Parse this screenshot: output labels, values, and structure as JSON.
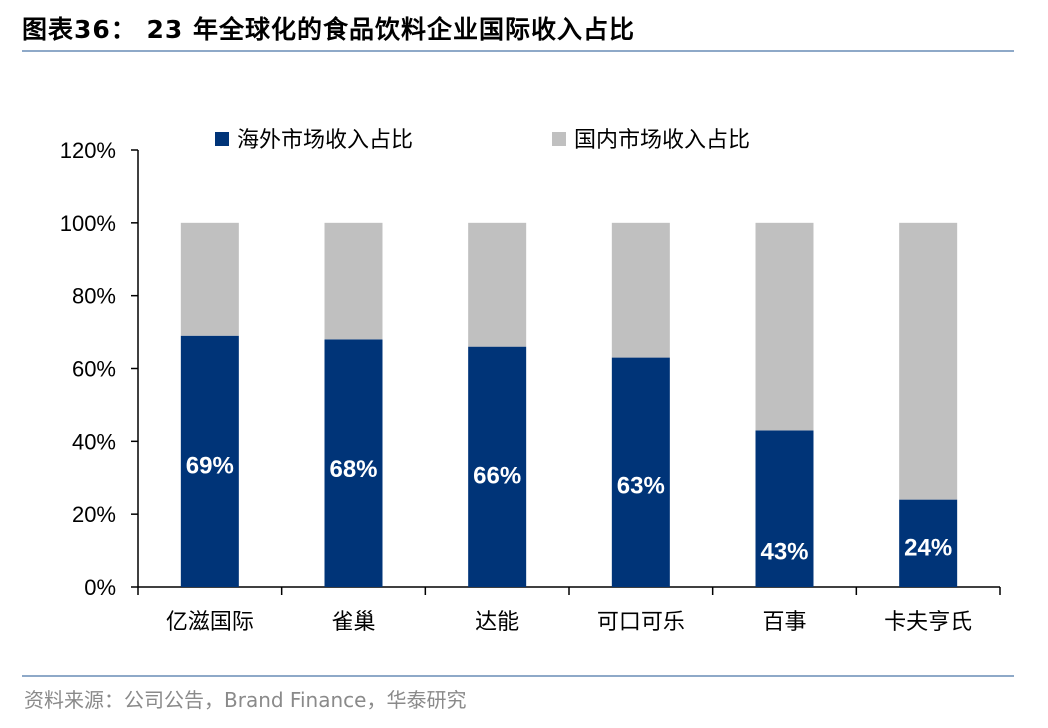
{
  "header": {
    "title": "图表36： 23 年全球化的食品饮料企业国际收入占比"
  },
  "footer": {
    "source": "资料来源：公司公告，Brand Finance，华泰研究"
  },
  "colors": {
    "overseas": "#003478",
    "domestic": "#c0c0c0",
    "rule": "#8ea9c8"
  },
  "chart_data": {
    "type": "bar",
    "stacked": true,
    "categories": [
      "亿滋国际",
      "雀巢",
      "达能",
      "可口可乐",
      "百事",
      "卡夫亨氏"
    ],
    "series": [
      {
        "name": "海外市场收入占比",
        "values": [
          69,
          68,
          66,
          63,
          43,
          24
        ],
        "data_labels": [
          "69%",
          "68%",
          "66%",
          "63%",
          "43%",
          "24%"
        ]
      },
      {
        "name": "国内市场收入占比",
        "values": [
          31,
          32,
          34,
          37,
          57,
          76
        ]
      }
    ],
    "ylim": [
      0,
      120
    ],
    "yticks": [
      "0%",
      "20%",
      "40%",
      "60%",
      "80%",
      "100%",
      "120%"
    ],
    "ytick_values": [
      0,
      20,
      40,
      60,
      80,
      100,
      120
    ],
    "legend": "top-center",
    "grid": false,
    "title": "",
    "xlabel": "",
    "ylabel": ""
  }
}
